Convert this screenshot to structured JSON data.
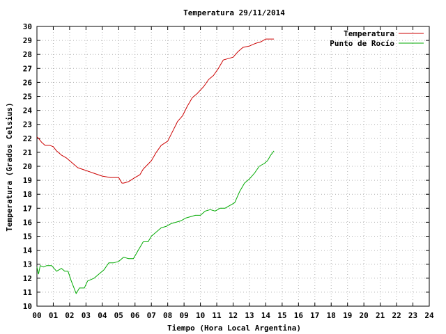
{
  "chart_data": {
    "type": "line",
    "title": "Temperatura 29/11/2014",
    "xlabel": "Tiempo (Hora Local Argentina)",
    "ylabel": "Temperatura (Grados Celsius)",
    "xlim": [
      0,
      24
    ],
    "ylim": [
      10,
      30
    ],
    "x_ticks": [
      "00",
      "01",
      "02",
      "03",
      "04",
      "05",
      "06",
      "07",
      "08",
      "09",
      "10",
      "11",
      "12",
      "13",
      "14",
      "15",
      "16",
      "17",
      "18",
      "19",
      "20",
      "21",
      "22",
      "23",
      "24"
    ],
    "y_ticks": [
      10,
      11,
      12,
      13,
      14,
      15,
      16,
      17,
      18,
      19,
      20,
      21,
      22,
      23,
      24,
      25,
      26,
      27,
      28,
      29,
      30
    ],
    "grid": true,
    "legend_position": "top-right",
    "series": [
      {
        "name": "Temperatura",
        "color": "#cc0000",
        "x": [
          0,
          0.1,
          0.3,
          0.5,
          0.8,
          1.0,
          1.2,
          1.5,
          1.8,
          2.1,
          2.5,
          3.0,
          3.5,
          4.0,
          4.5,
          5.0,
          5.1,
          5.2,
          5.3,
          5.6,
          6.0,
          6.3,
          6.5,
          7.0,
          7.3,
          7.6,
          8.0,
          8.3,
          8.6,
          8.9,
          9.2,
          9.5,
          9.8,
          10.2,
          10.5,
          10.8,
          11.1,
          11.4,
          11.7,
          12.0,
          12.3,
          12.6,
          13.0,
          13.4,
          13.7,
          14.0,
          14.3,
          14.5
        ],
        "y": [
          22.1,
          22.0,
          21.7,
          21.5,
          21.5,
          21.4,
          21.1,
          20.8,
          20.6,
          20.3,
          19.9,
          19.7,
          19.5,
          19.3,
          19.2,
          19.2,
          19.0,
          18.8,
          18.8,
          18.9,
          19.2,
          19.4,
          19.8,
          20.4,
          21.0,
          21.5,
          21.8,
          22.5,
          23.2,
          23.6,
          24.3,
          24.9,
          25.2,
          25.7,
          26.2,
          26.5,
          27.0,
          27.6,
          27.7,
          27.8,
          28.2,
          28.5,
          28.6,
          28.8,
          28.9,
          29.1,
          29.1,
          29.1
        ]
      },
      {
        "name": "Punto de Rocío",
        "color": "#00aa00",
        "x": [
          0,
          0.1,
          0.2,
          0.4,
          0.6,
          0.9,
          1.2,
          1.5,
          1.7,
          1.9,
          2.1,
          2.3,
          2.4,
          2.6,
          2.9,
          3.1,
          3.3,
          3.5,
          3.8,
          4.1,
          4.4,
          4.7,
          5.0,
          5.3,
          5.6,
          5.9,
          6.2,
          6.5,
          6.8,
          7.0,
          7.3,
          7.6,
          7.9,
          8.2,
          8.5,
          8.8,
          9.1,
          9.4,
          9.7,
          10.0,
          10.3,
          10.6,
          10.9,
          11.2,
          11.5,
          11.8,
          12.1,
          12.4,
          12.7,
          13.0,
          13.3,
          13.6,
          13.9,
          14.1,
          14.3,
          14.5
        ],
        "y": [
          12.8,
          12.3,
          12.9,
          12.8,
          12.9,
          12.9,
          12.5,
          12.7,
          12.5,
          12.5,
          11.8,
          11.2,
          10.9,
          11.3,
          11.3,
          11.8,
          11.9,
          12.0,
          12.3,
          12.6,
          13.1,
          13.1,
          13.2,
          13.5,
          13.4,
          13.4,
          14.0,
          14.6,
          14.6,
          15.0,
          15.3,
          15.6,
          15.7,
          15.9,
          16.0,
          16.1,
          16.3,
          16.4,
          16.5,
          16.5,
          16.8,
          16.9,
          16.8,
          17.0,
          17.0,
          17.2,
          17.4,
          18.2,
          18.8,
          19.1,
          19.5,
          20.0,
          20.2,
          20.4,
          20.8,
          21.1
        ]
      }
    ]
  }
}
